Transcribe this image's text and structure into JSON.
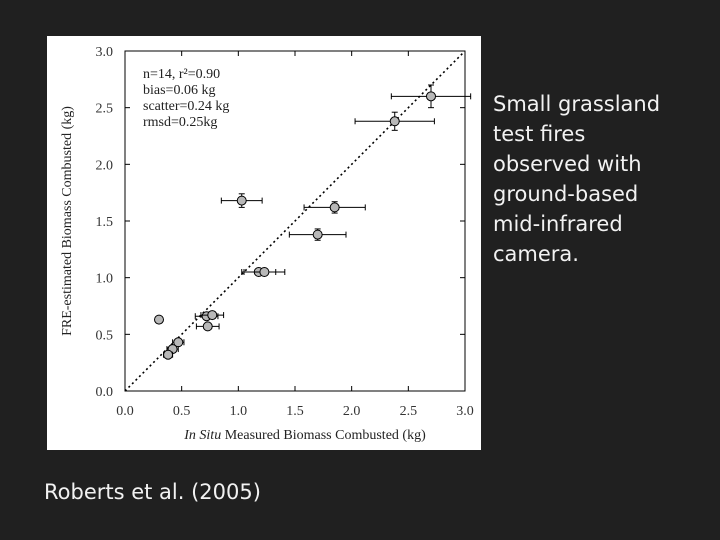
{
  "slide": {
    "caption_lines": [
      "Small grassland",
      "test fires",
      "observed with",
      "ground-based",
      "mid-infrared",
      "camera."
    ],
    "citation": "Roberts et al. (2005)",
    "background_color": "#202020",
    "text_color": "#f2f2f2"
  },
  "chart_data": {
    "type": "scatter",
    "xlabel_italic": "In Situ",
    "xlabel_rest": "Measured Biomass Combusted (kg)",
    "ylabel": "FRE-estimated Biomass Combusted (kg)",
    "xlim": [
      0,
      3.0
    ],
    "ylim": [
      0,
      3.0
    ],
    "xticks": [
      "0.0",
      "0.5",
      "1.0",
      "1.5",
      "2.0",
      "2.5",
      "3.0"
    ],
    "yticks": [
      "0.0",
      "0.5",
      "1.0",
      "1.5",
      "2.0",
      "2.5",
      "3.0"
    ],
    "grid": false,
    "one_to_one_line": true,
    "stats_box": [
      "n=14, r²=0.90",
      "bias=0.06 kg",
      "scatter=0.24 kg",
      "rmsd=0.25kg"
    ],
    "points": [
      {
        "x": 2.7,
        "y": 2.6,
        "xerr": 0.35,
        "yerr": 0.1
      },
      {
        "x": 2.38,
        "y": 2.38,
        "xerr": 0.35,
        "yerr": 0.08
      },
      {
        "x": 1.03,
        "y": 1.68,
        "xerr": 0.18,
        "yerr": 0.06
      },
      {
        "x": 1.85,
        "y": 1.62,
        "xerr": 0.27,
        "yerr": 0.05
      },
      {
        "x": 1.7,
        "y": 1.38,
        "xerr": 0.25,
        "yerr": 0.05
      },
      {
        "x": 1.18,
        "y": 1.05,
        "xerr": 0.15,
        "yerr": 0.02
      },
      {
        "x": 1.23,
        "y": 1.05,
        "xerr": 0.18,
        "yerr": 0.02
      },
      {
        "x": 0.3,
        "y": 0.63,
        "xerr": 0.0,
        "yerr": 0.0
      },
      {
        "x": 0.72,
        "y": 0.66,
        "xerr": 0.1,
        "yerr": 0.0
      },
      {
        "x": 0.77,
        "y": 0.67,
        "xerr": 0.1,
        "yerr": 0.0
      },
      {
        "x": 0.73,
        "y": 0.57,
        "xerr": 0.1,
        "yerr": 0.0
      },
      {
        "x": 0.47,
        "y": 0.43,
        "xerr": 0.05,
        "yerr": 0.0
      },
      {
        "x": 0.42,
        "y": 0.37,
        "xerr": 0.05,
        "yerr": 0.0
      },
      {
        "x": 0.38,
        "y": 0.32,
        "xerr": 0.04,
        "yerr": 0.0
      }
    ],
    "marker_color": "#b8b8b8",
    "line_color": "#000000"
  }
}
